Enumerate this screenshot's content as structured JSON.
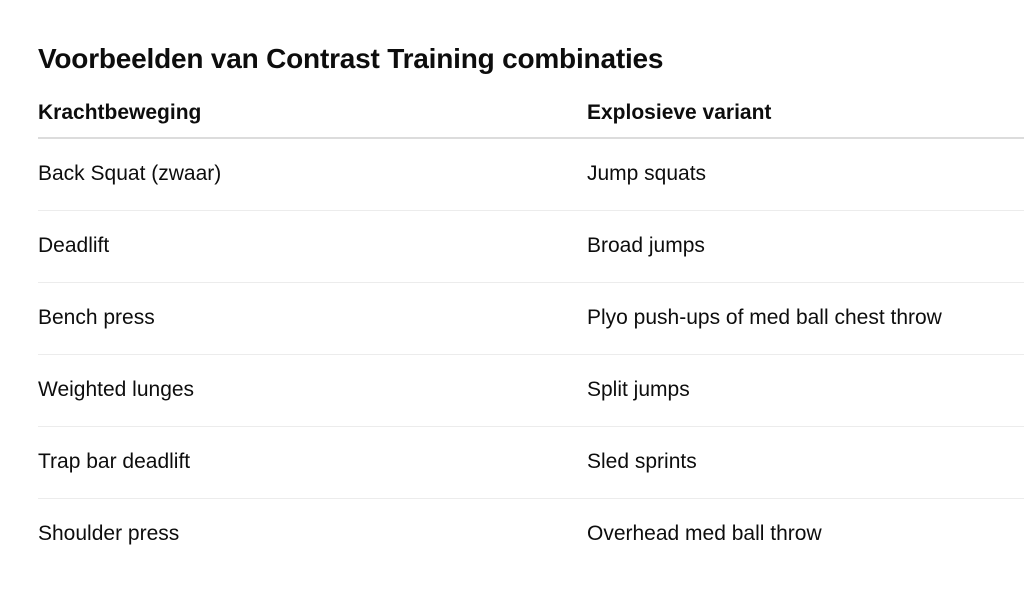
{
  "page": {
    "title": "Voorbeelden van Contrast Training combinaties"
  },
  "table": {
    "columns": [
      {
        "label": "Krachtbeweging"
      },
      {
        "label": "Explosieve variant"
      }
    ],
    "rows": [
      {
        "krachtbeweging": "Back Squat (zwaar)",
        "explosieve_variant": "Jump squats"
      },
      {
        "krachtbeweging": "Deadlift",
        "explosieve_variant": "Broad jumps"
      },
      {
        "krachtbeweging": "Bench press",
        "explosieve_variant": "Plyo push-ups of med ball chest throw"
      },
      {
        "krachtbeweging": "Weighted lunges",
        "explosieve_variant": "Split jumps"
      },
      {
        "krachtbeweging": "Trap bar deadlift",
        "explosieve_variant": "Sled sprints"
      },
      {
        "krachtbeweging": "Shoulder press",
        "explosieve_variant": "Overhead med ball throw"
      }
    ]
  },
  "colors": {
    "text": "#0d0d0d",
    "background": "#ffffff",
    "header_divider": "#dcdcdc",
    "row_divider": "#ececec"
  }
}
